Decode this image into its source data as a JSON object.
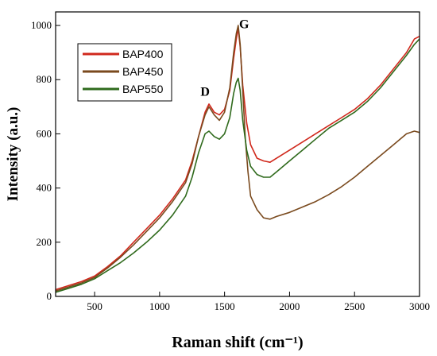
{
  "chart_data": {
    "type": "line",
    "xlabel": "Raman shift (cm⁻¹)",
    "ylabel": "Intensity (a.u.)",
    "xlim": [
      200,
      3000
    ],
    "ylim": [
      0,
      1050
    ],
    "xticks": [
      500,
      1000,
      1500,
      2000,
      2500,
      3000
    ],
    "yticks": [
      0,
      200,
      400,
      600,
      800,
      1000
    ],
    "grid": false,
    "legend": "top-left",
    "annotations": [
      {
        "text": "D",
        "x": 1350,
        "y": 740
      },
      {
        "text": "G",
        "x": 1650,
        "y": 990
      }
    ],
    "series": [
      {
        "name": "BAP400",
        "color": "#d0281c",
        "x": [
          200,
          300,
          400,
          500,
          600,
          700,
          800,
          900,
          1000,
          1100,
          1200,
          1250,
          1300,
          1350,
          1380,
          1420,
          1460,
          1500,
          1540,
          1570,
          1590,
          1605,
          1620,
          1640,
          1670,
          1700,
          1750,
          1800,
          1850,
          1900,
          2000,
          2100,
          2200,
          2300,
          2400,
          2500,
          2600,
          2700,
          2800,
          2900,
          2960,
          3000
        ],
        "y": [
          25,
          40,
          55,
          75,
          110,
          150,
          200,
          250,
          300,
          360,
          430,
          500,
          590,
          680,
          710,
          680,
          670,
          690,
          760,
          880,
          950,
          990,
          920,
          780,
          640,
          560,
          510,
          500,
          495,
          510,
          540,
          570,
          600,
          630,
          660,
          690,
          730,
          780,
          840,
          900,
          950,
          960
        ]
      },
      {
        "name": "BAP450",
        "color": "#7a4a1e",
        "x": [
          200,
          300,
          400,
          500,
          600,
          700,
          800,
          900,
          1000,
          1100,
          1200,
          1250,
          1300,
          1350,
          1380,
          1420,
          1460,
          1500,
          1540,
          1570,
          1590,
          1605,
          1620,
          1640,
          1660,
          1680,
          1700,
          1750,
          1800,
          1850,
          1900,
          2000,
          2100,
          2200,
          2300,
          2400,
          2500,
          2600,
          2700,
          2800,
          2900,
          2960,
          3000
        ],
        "y": [
          20,
          35,
          50,
          70,
          105,
          145,
          190,
          240,
          290,
          350,
          420,
          490,
          590,
          670,
          700,
          670,
          650,
          680,
          770,
          900,
          970,
          1000,
          930,
          760,
          580,
          460,
          370,
          320,
          290,
          285,
          295,
          310,
          330,
          350,
          375,
          405,
          440,
          480,
          520,
          560,
          600,
          610,
          605
        ]
      },
      {
        "name": "BAP550",
        "color": "#2f6a1c",
        "x": [
          200,
          300,
          400,
          500,
          600,
          700,
          800,
          900,
          1000,
          1100,
          1200,
          1250,
          1300,
          1350,
          1380,
          1420,
          1460,
          1500,
          1540,
          1570,
          1590,
          1605,
          1620,
          1640,
          1670,
          1700,
          1750,
          1800,
          1850,
          1900,
          2000,
          2100,
          2200,
          2300,
          2400,
          2500,
          2600,
          2700,
          2800,
          2900,
          2960,
          3000
        ],
        "y": [
          15,
          30,
          45,
          65,
          95,
          125,
          160,
          200,
          245,
          300,
          370,
          440,
          530,
          600,
          610,
          590,
          580,
          600,
          660,
          750,
          790,
          805,
          760,
          650,
          540,
          480,
          450,
          440,
          440,
          460,
          500,
          540,
          580,
          620,
          650,
          680,
          720,
          770,
          830,
          890,
          930,
          950
        ]
      }
    ]
  }
}
